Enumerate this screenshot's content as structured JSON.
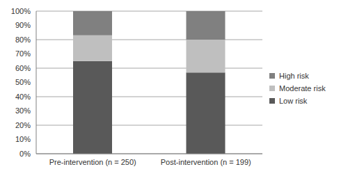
{
  "chart_data": {
    "type": "bar",
    "stacked": true,
    "categories": [
      "Pre-intervention (n = 250)",
      "Post-intervention (n = 199)"
    ],
    "series": [
      {
        "name": "Low risk",
        "color": "#595959",
        "values": [
          65,
          57
        ]
      },
      {
        "name": "Moderate risk",
        "color": "#bfbfbf",
        "values": [
          18,
          23
        ]
      },
      {
        "name": "High risk",
        "color": "#808080",
        "values": [
          17,
          20
        ]
      }
    ],
    "ylim": [
      0,
      100
    ],
    "yticks": [
      {
        "value": 0,
        "label": "0%"
      },
      {
        "value": 10,
        "label": "10%"
      },
      {
        "value": 20,
        "label": "20%"
      },
      {
        "value": 30,
        "label": "30%"
      },
      {
        "value": 40,
        "label": "40%"
      },
      {
        "value": 50,
        "label": "50%"
      },
      {
        "value": 60,
        "label": "60%"
      },
      {
        "value": 70,
        "label": "70%"
      },
      {
        "value": 80,
        "label": "80%"
      },
      {
        "value": 90,
        "label": "90%"
      },
      {
        "value": 100,
        "label": "100%"
      }
    ],
    "grid": true,
    "legend": "right"
  }
}
